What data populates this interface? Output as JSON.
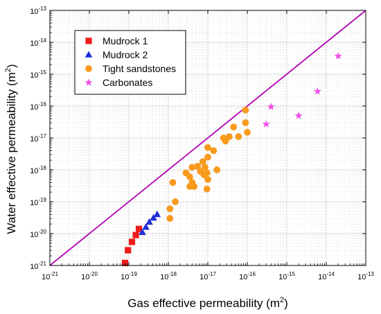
{
  "chart_data": {
    "type": "scatter",
    "x_scale": "log",
    "y_scale": "log",
    "xlim": [
      1e-21,
      1e-13
    ],
    "ylim": [
      1e-21,
      1e-13
    ],
    "x_ticks": [
      -21,
      -20,
      -19,
      -18,
      -17,
      -16,
      -15,
      -14,
      -13
    ],
    "y_ticks": [
      -21,
      -20,
      -19,
      -18,
      -17,
      -16,
      -15,
      -14,
      -13
    ],
    "grid": true,
    "legend_position": "top-left",
    "xlabel": {
      "base": "Gas effective permeability (m",
      "sup": "2",
      "close": ")"
    },
    "ylabel": {
      "base": "Water effective permeability (m",
      "sup": "2",
      "close": ")"
    },
    "reference_line": {
      "type": "y=x",
      "color": "#b300b3"
    },
    "series": [
      {
        "name": "Mudrock 1",
        "marker": "square",
        "color": "#ee1c1c",
        "points": [
          [
            8e-20,
            1.2e-21
          ],
          [
            9.5e-20,
            3e-21
          ],
          [
            1.2e-19,
            5.5e-21
          ],
          [
            1.5e-19,
            9e-21
          ],
          [
            1.8e-19,
            1.4e-20
          ]
        ]
      },
      {
        "name": "Mudrock 2",
        "marker": "triangle",
        "color": "#1f2fd9",
        "points": [
          [
            2.2e-19,
            1.1e-20
          ],
          [
            2.7e-19,
            1.6e-20
          ],
          [
            3.3e-19,
            2.3e-20
          ],
          [
            4.2e-19,
            3.1e-20
          ],
          [
            5.2e-19,
            4e-20
          ]
        ]
      },
      {
        "name": "Tight sandstones",
        "marker": "circle",
        "color": "#f89a1c",
        "points": [
          [
            1.1e-18,
            3e-20
          ],
          [
            1.1e-18,
            6e-20
          ],
          [
            1.5e-18,
            1e-19
          ],
          [
            1.3e-18,
            4e-19
          ],
          [
            2.8e-18,
            8e-19
          ],
          [
            3.5e-18,
            6e-19
          ],
          [
            3.5e-18,
            3e-19
          ],
          [
            4e-18,
            4e-19
          ],
          [
            4.5e-18,
            3e-19
          ],
          [
            4e-18,
            1.2e-18
          ],
          [
            5.5e-18,
            1.3e-18
          ],
          [
            6.5e-18,
            9e-19
          ],
          [
            7.5e-18,
            1.8e-18
          ],
          [
            8.5e-18,
            1.2e-18
          ],
          [
            8e-18,
            7e-19
          ],
          [
            9.5e-18,
            8e-19
          ],
          [
            1e-17,
            5e-19
          ],
          [
            9.5e-18,
            2.5e-19
          ],
          [
            1e-17,
            2.5e-18
          ],
          [
            1e-17,
            5e-18
          ],
          [
            1.4e-17,
            4e-18
          ],
          [
            1.7e-17,
            1e-18
          ],
          [
            2.5e-17,
            1e-17
          ],
          [
            2.8e-17,
            8e-18
          ],
          [
            3.5e-17,
            1.1e-17
          ],
          [
            4.5e-17,
            2.2e-17
          ],
          [
            6e-17,
            1.1e-17
          ],
          [
            9e-17,
            7.5e-17
          ],
          [
            9e-17,
            3e-17
          ],
          [
            1e-16,
            1.5e-17
          ]
        ]
      },
      {
        "name": "Carbonates",
        "marker": "star",
        "color": "#f050e8",
        "points": [
          [
            3e-16,
            2.7e-17
          ],
          [
            4e-16,
            9.5e-17
          ],
          [
            2e-15,
            5e-17
          ],
          [
            6e-15,
            2.9e-16
          ],
          [
            2e-14,
            3.7e-15
          ]
        ]
      }
    ]
  }
}
